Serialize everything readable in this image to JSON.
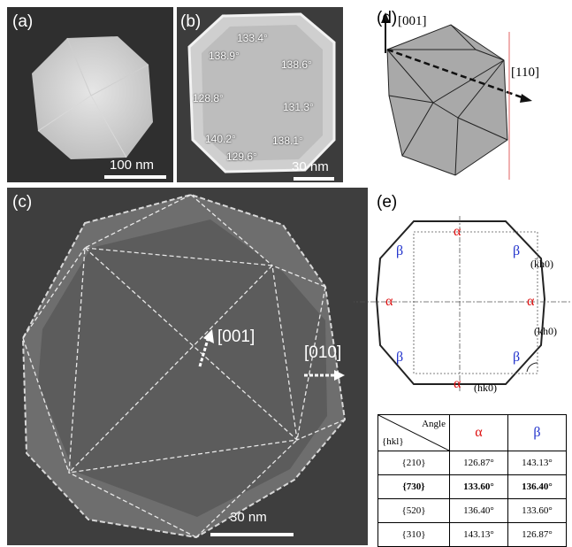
{
  "panels": {
    "a": {
      "label": "(a)",
      "scale": "100 nm"
    },
    "b": {
      "label": "(b)",
      "scale": "30 nm",
      "angles": [
        "133.4°",
        "138.9°",
        "138.6°",
        "128.8°",
        "131.3°",
        "140.2°",
        "138.1°",
        "129.6°"
      ]
    },
    "c": {
      "label": "(c)",
      "scale": "30 nm",
      "dir1": "[001]",
      "dir2": "[010]"
    },
    "d": {
      "label": "(d)",
      "dir1": "[001]",
      "dir2": "[110]"
    },
    "e": {
      "label": "(e)",
      "alpha": "α",
      "beta": "β",
      "facet1": "(k̄h0)",
      "facet2": "(kh0)",
      "facet3": "(hk0)"
    }
  },
  "table": {
    "corner_top": "Angle",
    "corner_bottom": "{hkl}",
    "col_alpha": "α",
    "col_beta": "β",
    "rows": [
      {
        "hkl": "{210}",
        "alpha": "126.87°",
        "beta": "143.13°"
      },
      {
        "hkl": "{730}",
        "alpha": "133.60°",
        "beta": "136.40°"
      },
      {
        "hkl": "{520}",
        "alpha": "136.40°",
        "beta": "133.60°"
      },
      {
        "hkl": "{310}",
        "alpha": "143.13°",
        "beta": "126.87°"
      }
    ]
  }
}
